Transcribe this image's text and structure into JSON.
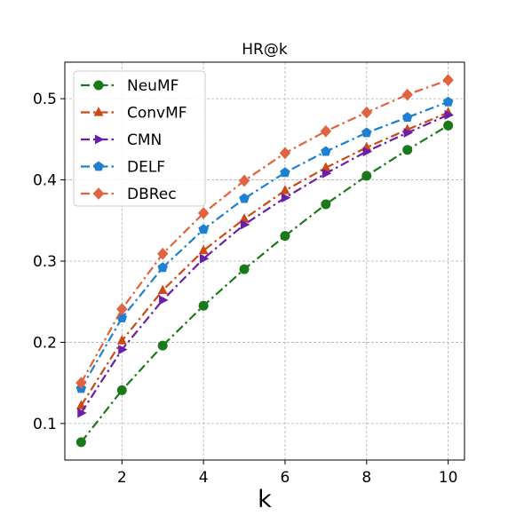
{
  "chart_data": {
    "type": "line",
    "title": "HR@k",
    "xlabel": "k",
    "ylabel": "",
    "x": [
      1,
      2,
      3,
      4,
      5,
      6,
      7,
      8,
      9,
      10
    ],
    "xlim": [
      0.6,
      10.4
    ],
    "ylim": [
      0.055,
      0.545
    ],
    "xticks": [
      2,
      4,
      6,
      8,
      10
    ],
    "yticks": [
      0.1,
      0.2,
      0.3,
      0.4,
      0.5
    ],
    "xtick_labels": [
      "2",
      "4",
      "6",
      "8",
      "10"
    ],
    "ytick_labels": [
      "0.1",
      "0.2",
      "0.3",
      "0.4",
      "0.5"
    ],
    "grid": true,
    "legend_position": "top-left",
    "series": [
      {
        "name": "NeuMF",
        "color": "#1a7a1a",
        "marker": "circle",
        "line_style": "dashdot",
        "values": [
          0.077,
          0.141,
          0.196,
          0.245,
          0.29,
          0.331,
          0.37,
          0.405,
          0.437,
          0.467
        ]
      },
      {
        "name": "ConvMF",
        "color": "#cc4a16",
        "marker": "triangle-up",
        "line_style": "dashdot",
        "values": [
          0.122,
          0.202,
          0.264,
          0.313,
          0.352,
          0.387,
          0.415,
          0.44,
          0.462,
          0.483
        ]
      },
      {
        "name": "CMN",
        "color": "#6a1fa6",
        "marker": "triangle-right",
        "line_style": "dashdot",
        "values": [
          0.113,
          0.191,
          0.252,
          0.303,
          0.345,
          0.378,
          0.408,
          0.435,
          0.458,
          0.48
        ]
      },
      {
        "name": "DELF",
        "color": "#1f7fd0",
        "marker": "pentagon",
        "line_style": "dashdot",
        "values": [
          0.143,
          0.23,
          0.292,
          0.339,
          0.377,
          0.409,
          0.435,
          0.458,
          0.477,
          0.496
        ]
      },
      {
        "name": "DBRec",
        "color": "#e0643f",
        "marker": "diamond",
        "line_style": "dashdot",
        "values": [
          0.15,
          0.241,
          0.309,
          0.359,
          0.399,
          0.433,
          0.46,
          0.483,
          0.505,
          0.523
        ]
      }
    ]
  }
}
